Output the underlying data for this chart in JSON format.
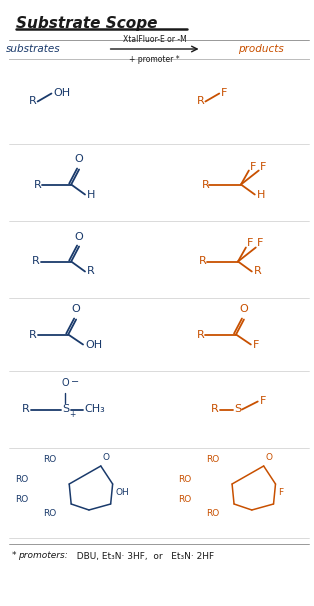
{
  "bg_color": "#ffffff",
  "blue": "#1a3a6b",
  "orange": "#c85000",
  "black": "#1a1a1a",
  "gray": "#888888",
  "lightgray": "#cccccc",
  "title": "Substrate Scope",
  "substrates_label": "substrates",
  "products_label": "products",
  "arrow_top": "XtalFluor-E or -M",
  "arrow_bottom": "+ promoter *",
  "footer_star": "* ",
  "footer_promoters": "promoters:",
  "footer_text": "  DBU, Et₃N· 3HF,  or   Et₃N· 2HF",
  "figw": 3.14,
  "figh": 6.06,
  "dpi": 100
}
